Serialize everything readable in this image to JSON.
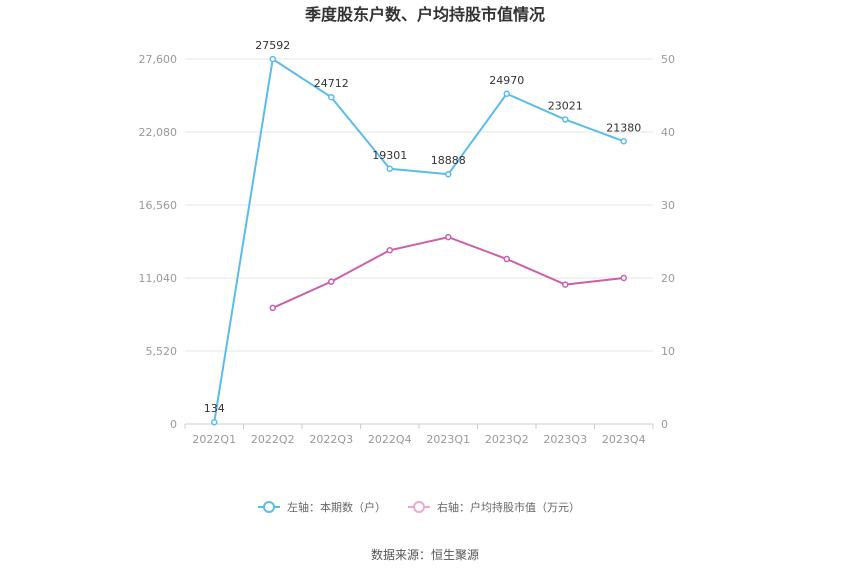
{
  "chart_data": {
    "type": "line",
    "title": "季度股东户数、户均持股市值情况",
    "categories": [
      "2022Q1",
      "2022Q2",
      "2022Q3",
      "2022Q4",
      "2023Q1",
      "2023Q2",
      "2023Q3",
      "2023Q4"
    ],
    "left_axis": {
      "ticks": [
        "0",
        "5,520",
        "11,040",
        "16,560",
        "22,080",
        "27,600"
      ],
      "ylim": [
        0,
        27600
      ]
    },
    "right_axis": {
      "ticks": [
        "0",
        "10",
        "20",
        "30",
        "40",
        "50"
      ],
      "ylim": [
        0,
        50
      ]
    },
    "series": [
      {
        "name": "左轴：本期数（户）",
        "axis": "left",
        "color": "#5bbcec",
        "values": [
          134,
          27592,
          24712,
          19301,
          18888,
          24970,
          23021,
          21380
        ],
        "labels": [
          "134",
          "27592",
          "24712",
          "19301",
          "18888",
          "24970",
          "23021",
          "21380"
        ]
      },
      {
        "name": "右轴：户均持股市值（万元）",
        "axis": "right",
        "color": "#cc5fa8",
        "values": [
          null,
          15.9,
          19.5,
          23.8,
          25.6,
          22.6,
          19.1,
          20.0
        ]
      }
    ],
    "grid": true,
    "legend_position": "bottom"
  },
  "source": "数据来源：恒生聚源"
}
